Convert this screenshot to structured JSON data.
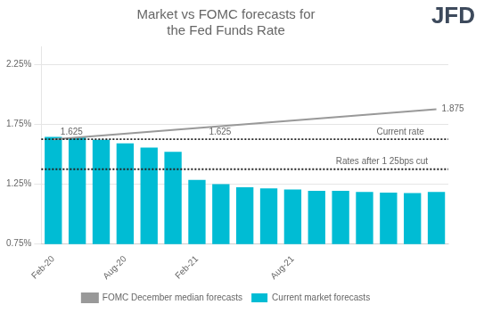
{
  "chart_data": {
    "type": "bar",
    "title": "Market vs FOMC forecasts for\nthe Fed Funds Rate",
    "categories": [
      "Feb-20",
      null,
      null,
      "Aug-20",
      null,
      null,
      "Feb-21",
      null,
      null,
      null,
      "Aug-21",
      null,
      null,
      null,
      null,
      null,
      null
    ],
    "series": [
      {
        "name": "Current market forecasts",
        "type": "bar",
        "color": "#00BCD4",
        "values": [
          1.645,
          1.64,
          1.62,
          1.59,
          1.555,
          1.52,
          1.285,
          1.25,
          1.225,
          1.215,
          1.205,
          1.195,
          1.195,
          1.185,
          1.18,
          1.175,
          1.185
        ]
      },
      {
        "name": "FOMC December median forecasts",
        "type": "line",
        "color": "#999999",
        "values": [
          1.625,
          null,
          null,
          null,
          null,
          null,
          null,
          null,
          null,
          null,
          null,
          null,
          null,
          null,
          null,
          null,
          1.875
        ]
      }
    ],
    "ylim": [
      0.75,
      2.4
    ],
    "yticks": [
      {
        "value": 0.75,
        "label": "0.75%"
      },
      {
        "value": 1.25,
        "label": "1.25%"
      },
      {
        "value": 1.75,
        "label": "1.75%"
      },
      {
        "value": 2.25,
        "label": "2.25%"
      }
    ],
    "grid": true,
    "legend": "bottom",
    "hlines": [
      {
        "y": 1.625,
        "color": "#222222",
        "line_style": "dotted"
      },
      {
        "y": 1.375,
        "color": "#222222",
        "line_style": "dotted"
      }
    ],
    "annotations": [
      {
        "text": "1.625",
        "y": 1.625
      },
      {
        "text": "1.625",
        "y": 1.625
      },
      {
        "text": "Current rate",
        "y": 1.625
      },
      {
        "text": "Rates after 1 25bps cut",
        "y": 1.375
      },
      {
        "text": "1.875",
        "y": 1.875
      },
      {
        "text": "JFD",
        "color": "#3d4a5c"
      }
    ]
  }
}
